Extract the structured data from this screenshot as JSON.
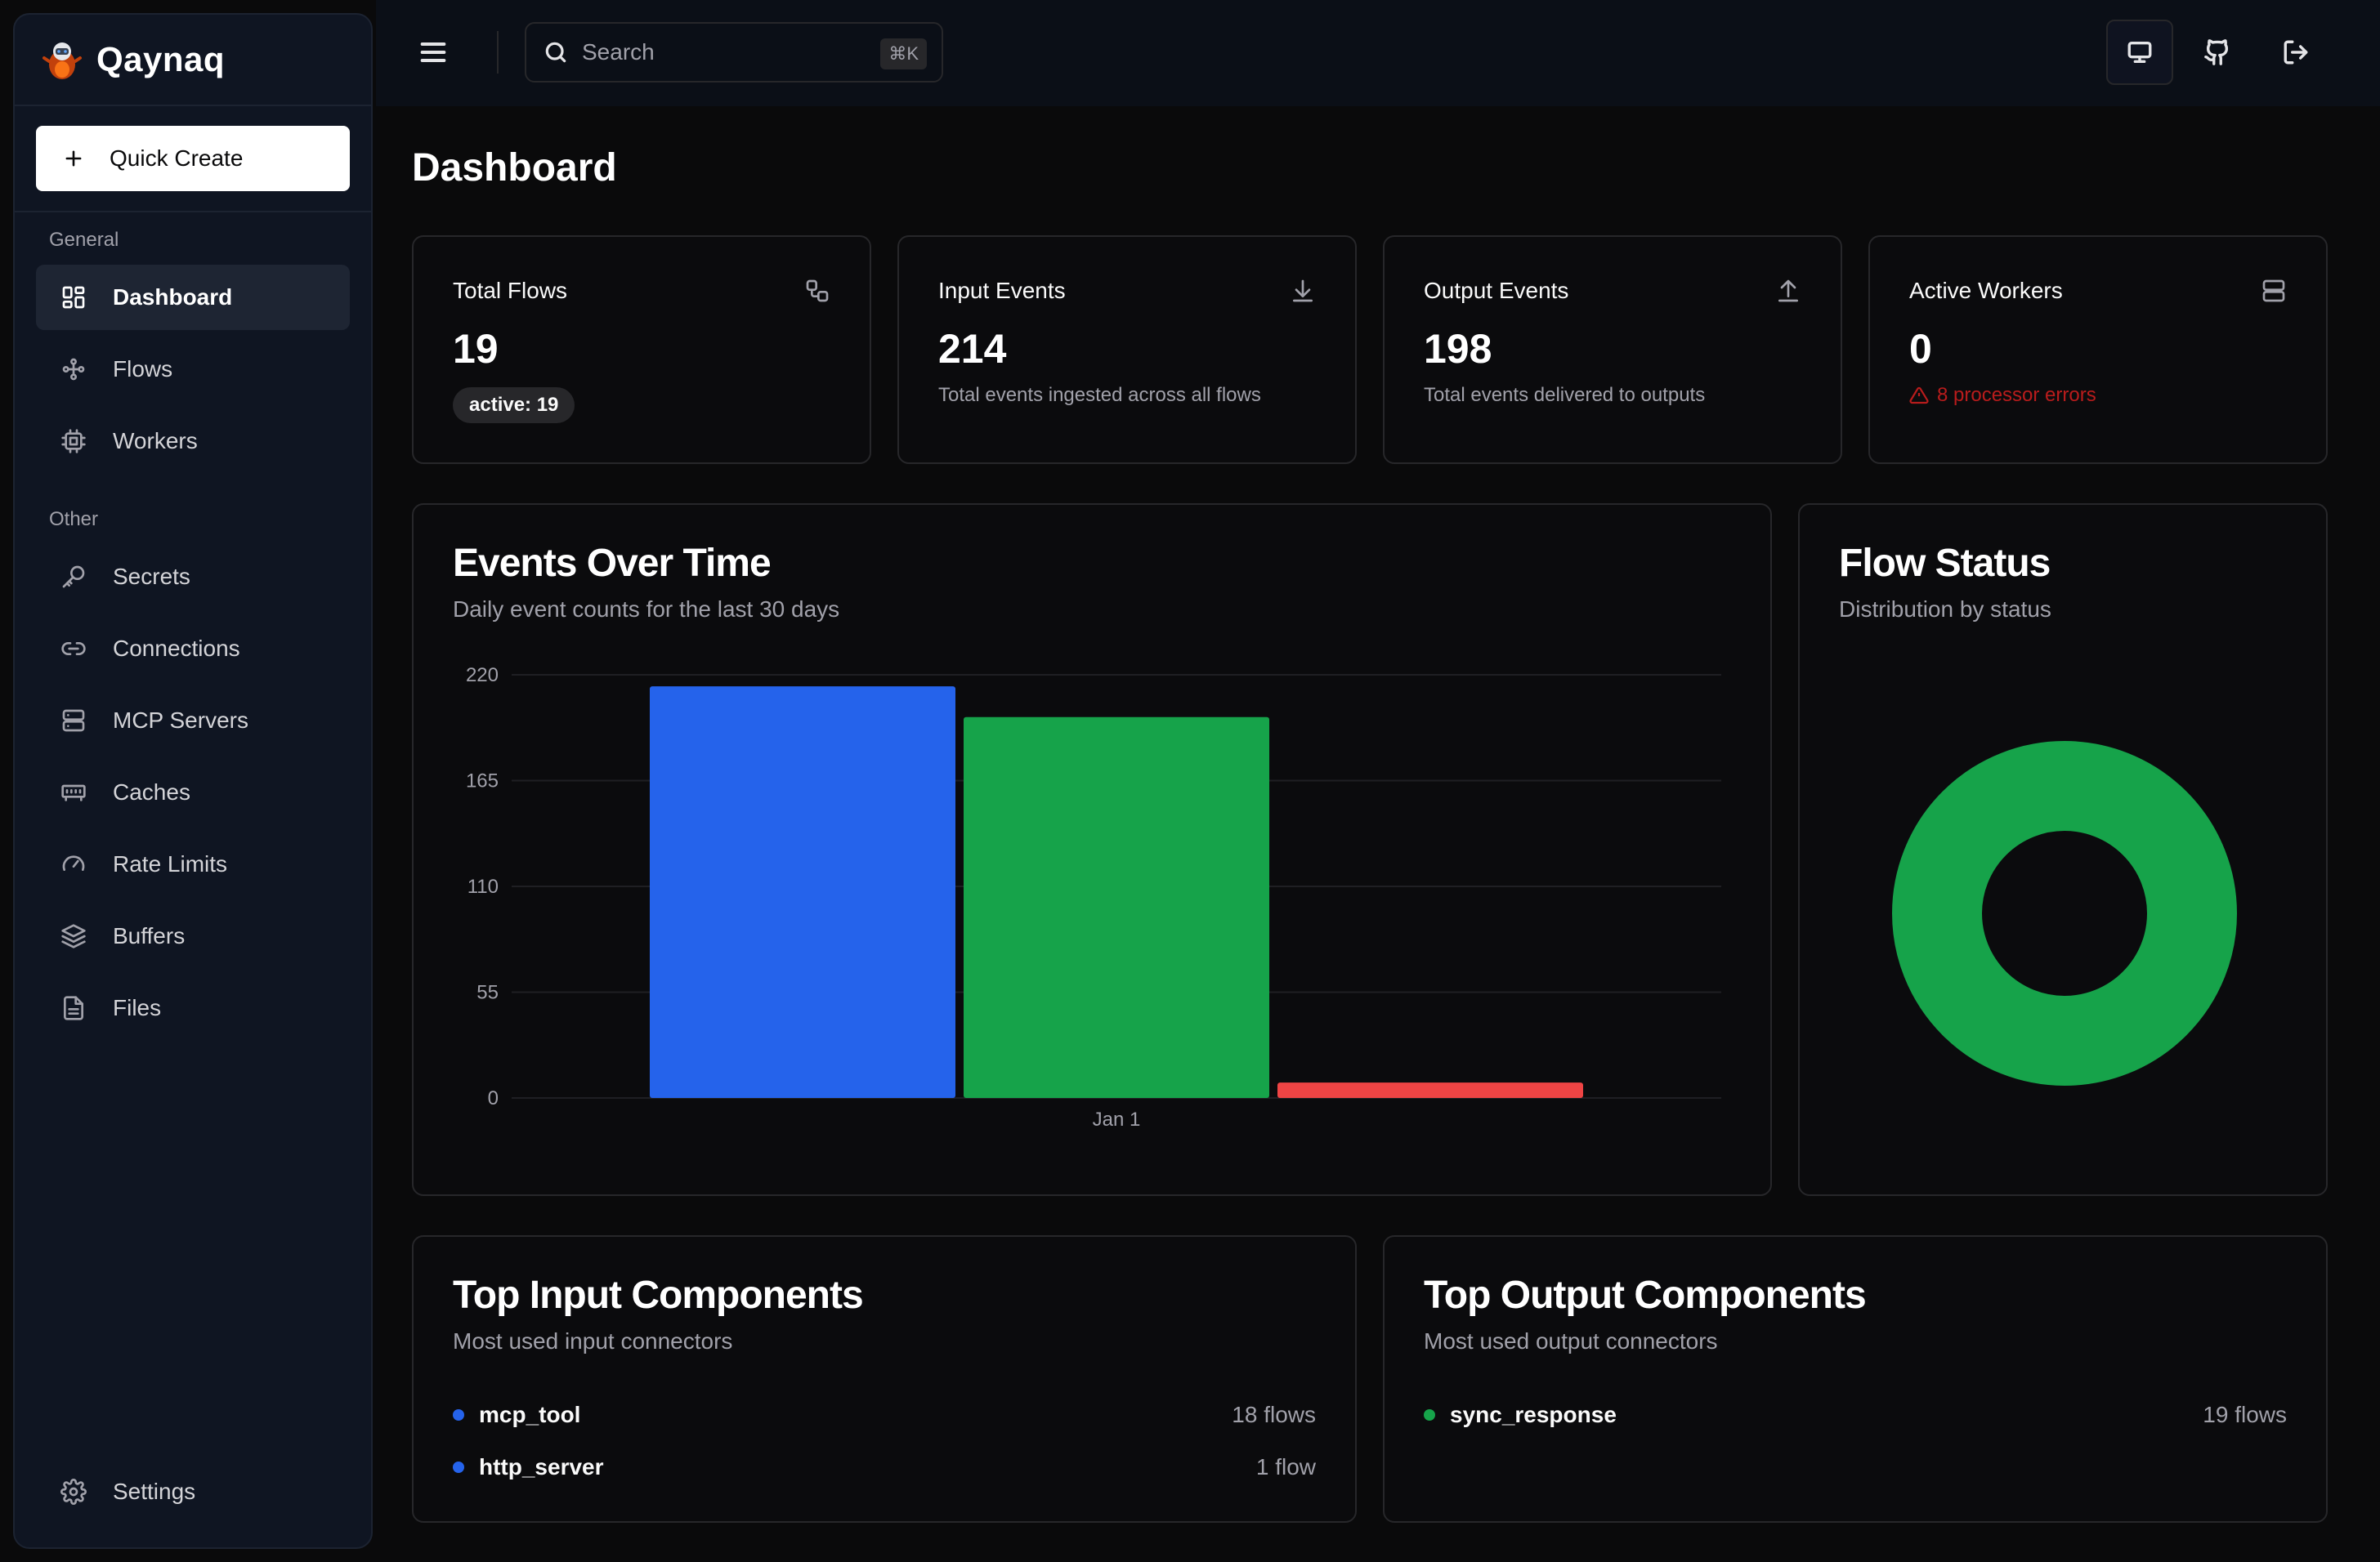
{
  "app": {
    "name": "Qaynaq"
  },
  "sidebar": {
    "quick_create": "Quick Create",
    "general_label": "General",
    "other_label": "Other",
    "general_items": [
      {
        "label": "Dashboard",
        "icon": "dashboard-icon",
        "active": true
      },
      {
        "label": "Flows",
        "icon": "flows-icon"
      },
      {
        "label": "Workers",
        "icon": "cpu-icon"
      }
    ],
    "other_items": [
      {
        "label": "Secrets",
        "icon": "key-icon"
      },
      {
        "label": "Connections",
        "icon": "link-icon"
      },
      {
        "label": "MCP Servers",
        "icon": "server-icon"
      },
      {
        "label": "Caches",
        "icon": "memory-icon"
      },
      {
        "label": "Rate Limits",
        "icon": "gauge-icon"
      },
      {
        "label": "Buffers",
        "icon": "layers-icon"
      },
      {
        "label": "Files",
        "icon": "file-icon"
      }
    ],
    "settings": "Settings"
  },
  "topbar": {
    "search_placeholder": "Search",
    "search_shortcut": "⌘K"
  },
  "main": {
    "title": "Dashboard",
    "stats": [
      {
        "title": "Total Flows",
        "value": "19",
        "badge": "active: 19",
        "icon": "workflow-icon"
      },
      {
        "title": "Input Events",
        "value": "214",
        "sub": "Total events ingested across all flows",
        "icon": "download-icon"
      },
      {
        "title": "Output Events",
        "value": "198",
        "sub": "Total events delivered to outputs",
        "icon": "upload-icon"
      },
      {
        "title": "Active Workers",
        "value": "0",
        "error": "8 processor errors",
        "icon": "server-icon"
      }
    ],
    "events_chart": {
      "title": "Events Over Time",
      "subtitle": "Daily event counts for the last 30 days"
    },
    "flow_status": {
      "title": "Flow Status",
      "subtitle": "Distribution by status"
    },
    "top_inputs": {
      "title": "Top Input Components",
      "subtitle": "Most used input connectors",
      "items": [
        {
          "name": "mcp_tool",
          "count": "18 flows"
        },
        {
          "name": "http_server",
          "count": "1 flow"
        }
      ]
    },
    "top_outputs": {
      "title": "Top Output Components",
      "subtitle": "Most used output connectors",
      "items": [
        {
          "name": "sync_response",
          "count": "19 flows"
        }
      ]
    }
  },
  "colors": {
    "input": "#2563eb",
    "output": "#16a34a",
    "error": "#ef4444",
    "active": "#16a34a"
  },
  "chart_data": [
    {
      "type": "bar",
      "categories": [
        "Jan 1"
      ],
      "series": [
        {
          "values": [
            214
          ]
        },
        {
          "values": [
            198
          ]
        },
        {
          "values": [
            8
          ]
        }
      ],
      "ylim": [
        0,
        220
      ],
      "yticks": [
        0,
        55,
        110,
        165,
        220
      ],
      "grid": true
    },
    {
      "type": "pie",
      "donut": true,
      "slices": [
        {
          "value": 19
        }
      ]
    }
  ]
}
